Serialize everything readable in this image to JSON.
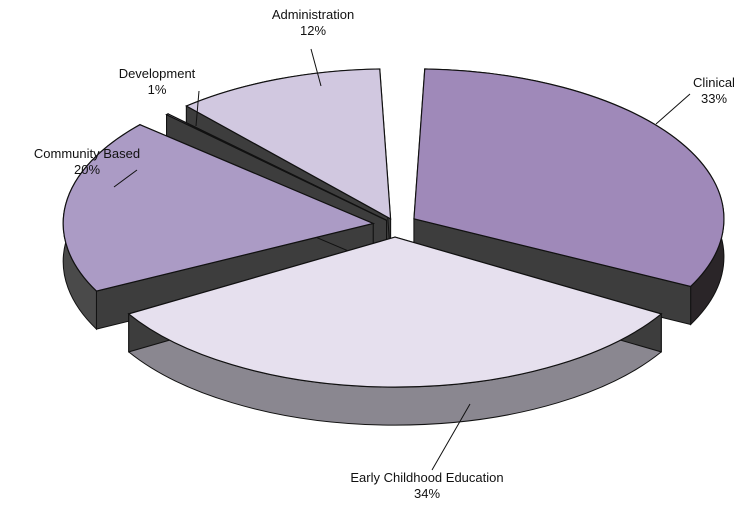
{
  "chart_data": {
    "type": "pie",
    "style": "3d-exploded",
    "title": "",
    "slices": [
      {
        "label": "Clinical",
        "value": 33,
        "value_label": "33%",
        "color": "#9f89b9"
      },
      {
        "label": "Early Childhood Education",
        "value": 34,
        "value_label": "34%",
        "color": "#e6e0ee"
      },
      {
        "label": "Community Based",
        "value": 20,
        "value_label": "20%",
        "color": "#ab9bc5"
      },
      {
        "label": "Development",
        "value": 1,
        "value_label": "1%",
        "color": "#c5bbd6"
      },
      {
        "label": "Administration",
        "value": 12,
        "value_label": "12%",
        "color": "#d1c8e0"
      }
    ]
  }
}
